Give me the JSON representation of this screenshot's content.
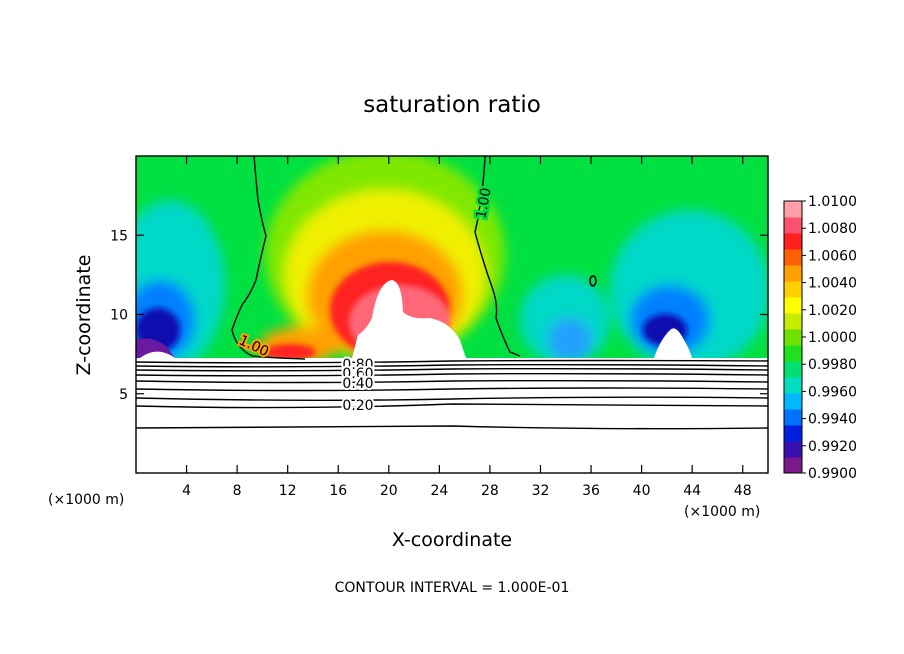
{
  "chart_data": {
    "type": "heatmap",
    "title": "saturation ratio",
    "xlabel": "X-coordinate",
    "ylabel": "Z-coordinate",
    "x_unit": "(×1000 m)",
    "xlim": [
      0,
      50
    ],
    "ylim": [
      0,
      20
    ],
    "x_ticks": [
      4,
      8,
      12,
      16,
      20,
      24,
      28,
      32,
      36,
      40,
      44,
      48
    ],
    "y_ticks": [
      5,
      10,
      15
    ],
    "colorbar": {
      "labels": [
        "1.0100",
        "1.0080",
        "1.0060",
        "1.0040",
        "1.0020",
        "1.0000",
        "0.9980",
        "0.9960",
        "0.9940",
        "0.9920",
        "0.9900"
      ],
      "colors": [
        "#7a1a8a",
        "#3a0fb0",
        "#0020e0",
        "#0070ff",
        "#00b8ff",
        "#00e0c0",
        "#00e070",
        "#20e020",
        "#70e000",
        "#c8ec00",
        "#ffff00",
        "#ffd000",
        "#ffa000",
        "#ff6000",
        "#ff2020",
        "#ff5070",
        "#ffa0a8"
      ]
    },
    "contour_labels": [
      "1.00",
      "1.00",
      "1.00",
      "0",
      "0.80",
      "0.60",
      "0.40",
      "0.20"
    ],
    "contour_levels_lower": [
      0.2,
      0.4,
      0.6,
      0.8
    ],
    "footer": "CONTOUR INTERVAL = 1.000E-01"
  }
}
